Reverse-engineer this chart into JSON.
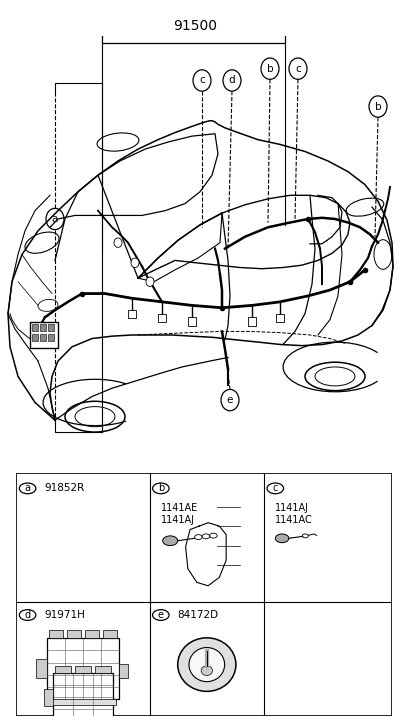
{
  "bg_color": "#ffffff",
  "main_label": "91500",
  "car_line_color": "#000000",
  "table_border_color": "#000000",
  "cells": [
    {
      "id": "a",
      "part": "91852R",
      "row": 0,
      "col": 0
    },
    {
      "id": "b",
      "part": "",
      "row": 0,
      "col": 1
    },
    {
      "id": "c",
      "part": "",
      "row": 0,
      "col": 2
    },
    {
      "id": "d",
      "part": "91971H",
      "row": 1,
      "col": 0
    },
    {
      "id": "e",
      "part": "84172D",
      "row": 1,
      "col": 1
    }
  ],
  "b_parts": [
    "1141AE",
    "1141AJ"
  ],
  "c_parts": [
    "1141AJ",
    "1141AC"
  ],
  "col_splits": [
    0.355,
    0.66
  ],
  "row_split": 0.47
}
